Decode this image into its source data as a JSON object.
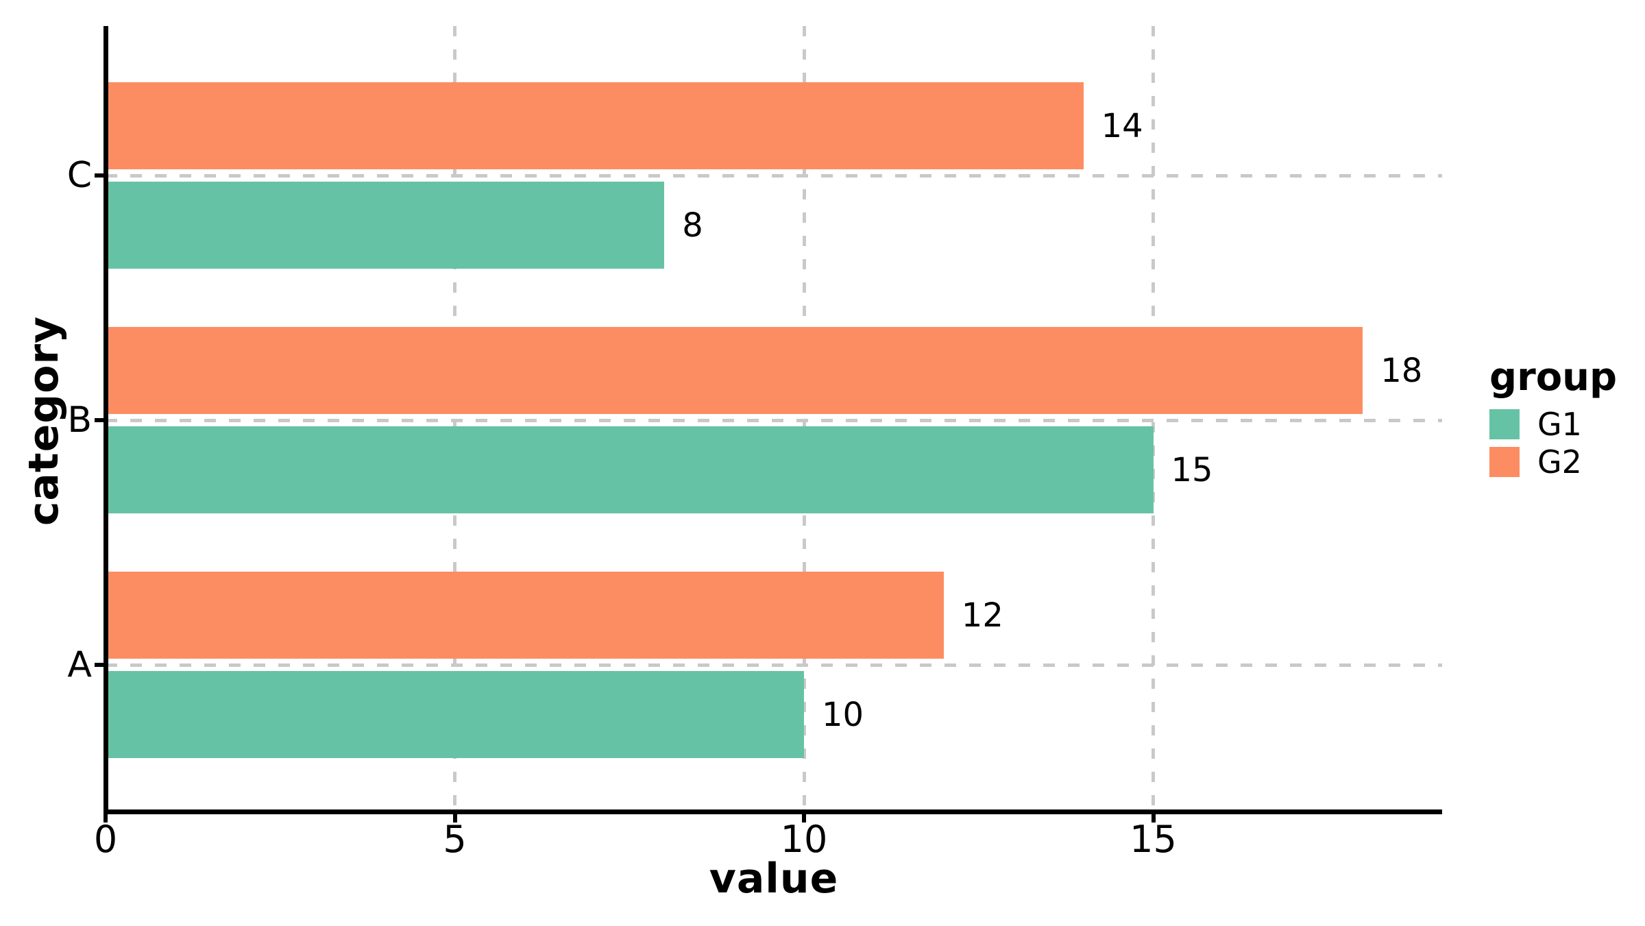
{
  "chart_data": {
    "type": "bar",
    "orientation": "horizontal",
    "title": "",
    "xlabel": "value",
    "ylabel": "category",
    "categories_bottom_to_top": [
      "A",
      "B",
      "C"
    ],
    "series": [
      {
        "name": "G1",
        "color": "#66C2A5",
        "values": [
          10,
          15,
          8
        ]
      },
      {
        "name": "G2",
        "color": "#FC8D62",
        "values": [
          12,
          18,
          14
        ]
      }
    ],
    "bar_value_labels": [
      {
        "category": "A",
        "G1": 10,
        "G2": 12
      },
      {
        "category": "B",
        "G1": 15,
        "G2": 18
      },
      {
        "category": "C",
        "G1": 8,
        "G2": 14
      }
    ],
    "x_ticks": [
      0,
      5,
      10,
      15
    ],
    "xlim": [
      0,
      19.1
    ],
    "legend": {
      "title": "group",
      "position": "right",
      "entries": [
        "G1",
        "G2"
      ]
    },
    "grid": {
      "style": "dashed",
      "color": "#c9c9c9",
      "horizontal_at_category_centers": true,
      "vertical_at_x_ticks": true
    },
    "axis_color": "#000000",
    "background": "#ffffff"
  }
}
